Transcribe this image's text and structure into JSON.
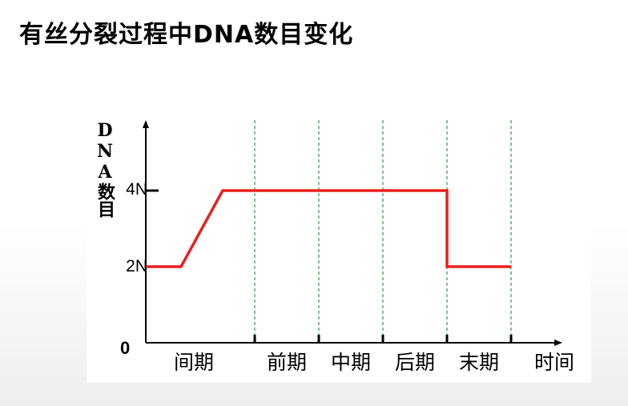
{
  "slide": {
    "title": "有丝分裂过程中DNA数目变化"
  },
  "chart_data": {
    "type": "line",
    "title": "",
    "xlabel": "时间",
    "ylabel": "DNA数目",
    "origin_label": "0",
    "y_ticks": [
      {
        "value": 2,
        "label": "2N"
      },
      {
        "value": 4,
        "label": "4N"
      }
    ],
    "ylim": [
      0,
      5.7
    ],
    "xlim": [
      0,
      6.4
    ],
    "phases": [
      {
        "label": "间期",
        "start": 0,
        "end": 1.7
      },
      {
        "label": "前期",
        "start": 1.7,
        "end": 2.7
      },
      {
        "label": "中期",
        "start": 2.7,
        "end": 3.7
      },
      {
        "label": "后期",
        "start": 3.7,
        "end": 4.7
      },
      {
        "label": "末期",
        "start": 4.7,
        "end": 5.7
      }
    ],
    "series": [
      {
        "color": "#e8201e",
        "points": [
          {
            "x": 0,
            "y": 2
          },
          {
            "x": 0.55,
            "y": 2
          },
          {
            "x": 1.2,
            "y": 4
          },
          {
            "x": 4.7,
            "y": 4
          },
          {
            "x": 4.7,
            "y": 2
          },
          {
            "x": 5.7,
            "y": 2
          }
        ]
      }
    ],
    "guide_color": "#2e9e3e",
    "grid": false,
    "legend": "none"
  }
}
